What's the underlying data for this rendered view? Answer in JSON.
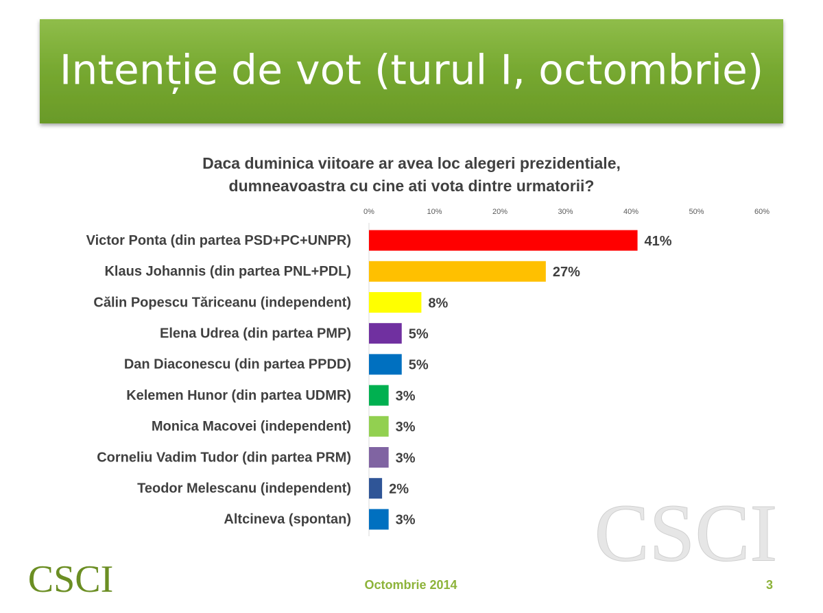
{
  "header": {
    "title": "Intenție de vot (turul I, octombrie)"
  },
  "chart_data": {
    "type": "bar",
    "orientation": "horizontal",
    "title": [
      "Daca duminica viitoare ar avea loc alegeri prezidentiale,",
      "dumneavoastra cu cine ati vota dintre urmatorii?"
    ],
    "categories": [
      "Victor Ponta (din partea PSD+PC+UNPR)",
      "Klaus Johannis (din partea PNL+PDL)",
      "Călin Popescu Tăriceanu (independent)",
      "Elena Udrea (din partea PMP)",
      "Dan Diaconescu (din partea PPDD)",
      "Kelemen Hunor (din partea UDMR)",
      "Monica Macovei (independent)",
      "Corneliu Vadim Tudor (din partea PRM)",
      "Teodor Melescanu (independent)",
      "Altcineva (spontan)"
    ],
    "values": [
      41,
      27,
      8,
      5,
      5,
      3,
      3,
      3,
      2,
      3
    ],
    "value_labels": [
      "41%",
      "27%",
      "8%",
      "5%",
      "5%",
      "3%",
      "3%",
      "3%",
      "2%",
      "3%"
    ],
    "colors": [
      "#ff0000",
      "#ffc000",
      "#ffff00",
      "#7030a0",
      "#0070c0",
      "#00b050",
      "#92d050",
      "#8064a2",
      "#2f5597",
      "#0070c0"
    ],
    "xlim": [
      0,
      60
    ],
    "xticks": [
      {
        "value": 0,
        "label": "0%"
      },
      {
        "value": 10,
        "label": "10%"
      },
      {
        "value": 20,
        "label": "20%"
      },
      {
        "value": 30,
        "label": "30%"
      },
      {
        "value": 40,
        "label": "40%"
      },
      {
        "value": 50,
        "label": "50%"
      },
      {
        "value": 60,
        "label": "60%"
      }
    ],
    "grid": false
  },
  "footer": {
    "date": "Octombrie 2014",
    "page": "3",
    "logo": "CSCI",
    "watermark": "CSCI"
  }
}
